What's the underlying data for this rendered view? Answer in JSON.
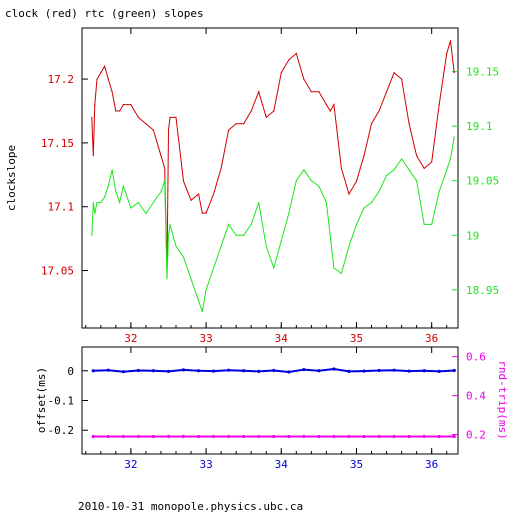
{
  "title": "clock (red) rtc (green) slopes",
  "footer": "2010-10-31  monopole.physics.ubc.ca",
  "colors": {
    "red": "#d10000",
    "green": "#1ee61e",
    "blue": "#0000dd",
    "magenta": "#ee00ee",
    "axis": "#000000"
  },
  "chart_data": [
    {
      "type": "line",
      "title": "clock (red) rtc (green) slopes",
      "xlabel": "",
      "ylabel": "clockslope",
      "xlim": [
        31.35,
        36.35
      ],
      "ylim": [
        17.005,
        17.24
      ],
      "y2lim": [
        18.915,
        19.19
      ],
      "xticks": [
        32,
        33,
        34,
        35,
        36
      ],
      "yticks": [
        17.05,
        17.1,
        17.15,
        17.2
      ],
      "y2ticks": [
        18.95,
        19.0,
        19.05,
        19.1,
        19.15
      ],
      "grid": false,
      "series": [
        {
          "name": "clock (red)",
          "axis": "left",
          "color": "#d10000",
          "x": [
            31.48,
            31.5,
            31.52,
            31.55,
            31.6,
            31.65,
            31.7,
            31.75,
            31.8,
            31.85,
            31.9,
            32.0,
            32.1,
            32.2,
            32.3,
            32.4,
            32.45,
            32.48,
            32.5,
            32.52,
            32.6,
            32.7,
            32.8,
            32.9,
            32.95,
            33.0,
            33.1,
            33.2,
            33.3,
            33.4,
            33.5,
            33.6,
            33.7,
            33.75,
            33.8,
            33.9,
            34.0,
            34.1,
            34.2,
            34.3,
            34.4,
            34.5,
            34.6,
            34.65,
            34.7,
            34.8,
            34.9,
            35.0,
            35.1,
            35.2,
            35.3,
            35.4,
            35.5,
            35.6,
            35.7,
            35.8,
            35.9,
            36.0,
            36.1,
            36.2,
            36.25,
            36.3
          ],
          "y": [
            17.17,
            17.14,
            17.18,
            17.2,
            17.205,
            17.21,
            17.2,
            17.19,
            17.175,
            17.175,
            17.18,
            17.18,
            17.17,
            17.165,
            17.16,
            17.14,
            17.13,
            17.05,
            17.16,
            17.17,
            17.17,
            17.12,
            17.105,
            17.11,
            17.095,
            17.095,
            17.11,
            17.13,
            17.16,
            17.165,
            17.165,
            17.175,
            17.19,
            17.18,
            17.17,
            17.175,
            17.205,
            17.215,
            17.22,
            17.2,
            17.19,
            17.19,
            17.18,
            17.175,
            17.18,
            17.13,
            17.11,
            17.12,
            17.14,
            17.165,
            17.175,
            17.19,
            17.205,
            17.2,
            17.165,
            17.14,
            17.13,
            17.135,
            17.18,
            17.22,
            17.23,
            17.205
          ]
        },
        {
          "name": "rtc (green)",
          "axis": "right",
          "color": "#1ee61e",
          "x": [
            31.48,
            31.5,
            31.52,
            31.55,
            31.6,
            31.65,
            31.7,
            31.75,
            31.8,
            31.85,
            31.9,
            32.0,
            32.1,
            32.2,
            32.3,
            32.4,
            32.45,
            32.48,
            32.5,
            32.52,
            32.6,
            32.7,
            32.8,
            32.9,
            32.95,
            33.0,
            33.1,
            33.2,
            33.3,
            33.4,
            33.5,
            33.6,
            33.7,
            33.75,
            33.8,
            33.9,
            34.0,
            34.1,
            34.2,
            34.3,
            34.4,
            34.5,
            34.6,
            34.65,
            34.7,
            34.8,
            34.9,
            35.0,
            35.1,
            35.2,
            35.3,
            35.4,
            35.5,
            35.6,
            35.7,
            35.8,
            35.9,
            36.0,
            36.1,
            36.2,
            36.25,
            36.3
          ],
          "y": [
            19.0,
            19.03,
            19.02,
            19.03,
            19.03,
            19.035,
            19.045,
            19.06,
            19.04,
            19.03,
            19.045,
            19.025,
            19.03,
            19.02,
            19.03,
            19.04,
            19.05,
            18.96,
            19.0,
            19.01,
            18.99,
            18.98,
            18.96,
            18.94,
            18.93,
            18.95,
            18.97,
            18.99,
            19.01,
            19.0,
            19.0,
            19.01,
            19.03,
            19.01,
            18.99,
            18.97,
            18.995,
            19.02,
            19.05,
            19.06,
            19.05,
            19.045,
            19.03,
            19.0,
            18.97,
            18.965,
            18.99,
            19.01,
            19.025,
            19.03,
            19.04,
            19.055,
            19.06,
            19.07,
            19.06,
            19.05,
            19.01,
            19.01,
            19.04,
            19.06,
            19.07,
            19.09
          ]
        }
      ]
    },
    {
      "type": "scatter",
      "title": "",
      "xlabel": "",
      "ylabel": "offset(ms)",
      "y2label": "rnd-trip(ms)",
      "xlim": [
        31.35,
        36.35
      ],
      "ylim": [
        -0.28,
        0.08
      ],
      "y2lim": [
        0.1,
        0.65
      ],
      "xticks": [
        32,
        33,
        34,
        35,
        36
      ],
      "yticks": [
        0,
        -0.1,
        -0.2
      ],
      "y2ticks": [
        0.6,
        0.4,
        0.2
      ],
      "grid": false,
      "series": [
        {
          "name": "offset",
          "axis": "left",
          "color": "#0000dd",
          "x": [
            31.5,
            31.7,
            31.9,
            32.1,
            32.3,
            32.5,
            32.7,
            32.9,
            33.1,
            33.3,
            33.5,
            33.7,
            33.9,
            34.1,
            34.3,
            34.5,
            34.7,
            34.9,
            35.1,
            35.3,
            35.5,
            35.7,
            35.9,
            36.1,
            36.3
          ],
          "y": [
            0.0,
            0.002,
            -0.003,
            0.001,
            0.0,
            -0.002,
            0.003,
            0.0,
            -0.001,
            0.002,
            0.0,
            -0.002,
            0.001,
            -0.004,
            0.004,
            0.0,
            0.006,
            -0.002,
            -0.001,
            0.001,
            0.002,
            -0.001,
            0.0,
            -0.002,
            0.001
          ]
        },
        {
          "name": "rnd-trip",
          "axis": "right",
          "color": "#ee00ee",
          "x": [
            31.5,
            31.7,
            31.9,
            32.1,
            32.3,
            32.5,
            32.7,
            32.9,
            33.1,
            33.3,
            33.5,
            33.7,
            33.9,
            34.1,
            34.3,
            34.5,
            34.7,
            34.9,
            35.1,
            35.3,
            35.5,
            35.7,
            35.9,
            36.1,
            36.3
          ],
          "y": [
            0.19,
            0.19,
            0.19,
            0.19,
            0.19,
            0.19,
            0.19,
            0.19,
            0.19,
            0.19,
            0.19,
            0.19,
            0.19,
            0.19,
            0.19,
            0.19,
            0.19,
            0.19,
            0.19,
            0.19,
            0.19,
            0.19,
            0.19,
            0.19,
            0.19
          ]
        }
      ]
    }
  ]
}
